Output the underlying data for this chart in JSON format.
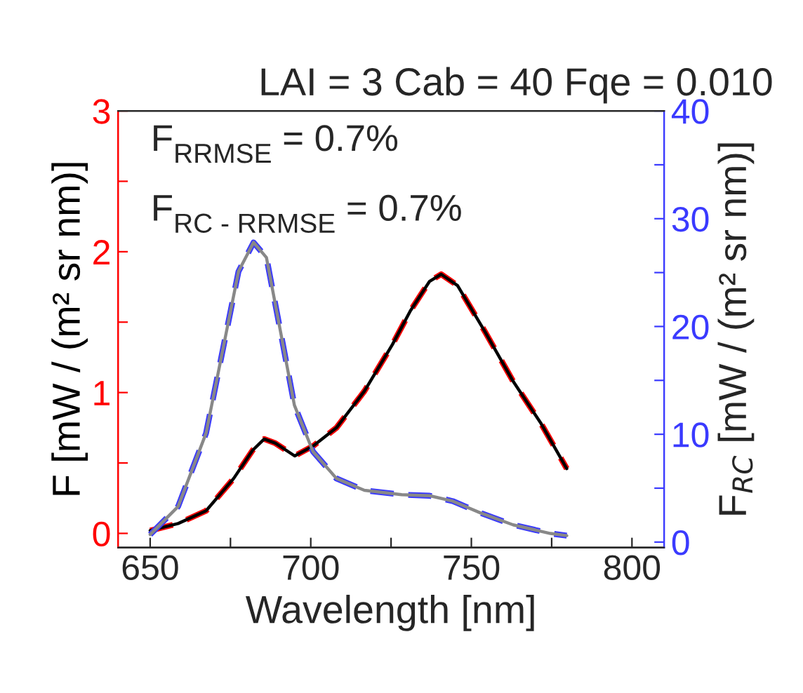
{
  "chart_data": {
    "type": "line",
    "title": "LAI = 3 Cab = 40 Fqe = 0.010",
    "xlabel": "Wavelength [nm]",
    "ylabel": "F [mW / (m² sr nm)]",
    "y2label": "F$_{RC}$ [mW / (m² sr nm)]",
    "annotations": [
      "F$_{RRMSE}$ = 0.7%",
      "F$_{RC - RRMSE}$ = 0.7%"
    ],
    "xlim": [
      640,
      810
    ],
    "xticks": [
      650,
      {
        "value": 675,
        "label": null
      },
      700,
      {
        "value": 725,
        "label": null
      },
      750,
      {
        "value": 775,
        "label": null
      },
      800
    ],
    "ylim": [
      -0.1,
      3
    ],
    "yticks": [
      0,
      {
        "value": 0.5,
        "label": null
      },
      1,
      {
        "value": 1.5,
        "label": null
      },
      2,
      {
        "value": 2.5,
        "label": null
      },
      3
    ],
    "y2lim": [
      -0.5,
      40
    ],
    "y2ticks": [
      0,
      {
        "value": 5,
        "label": null
      },
      10,
      {
        "value": 15,
        "label": null
      },
      20,
      {
        "value": 25,
        "label": null
      },
      30,
      {
        "value": 35,
        "label": null
      },
      40
    ],
    "grid": false,
    "legend": false,
    "series": [
      {
        "color": "#000000",
        "line_style": "solid",
        "x": [
          650,
          658.7,
          667.4,
          676,
          681.9,
          685.5,
          689,
          695,
          700.7,
          708,
          716.7,
          725.4,
          731,
          737,
          740.6,
          745.7,
          754.3,
          763,
          771.7,
          779.7
        ],
        "values": [
          0.02,
          0.07,
          0.16,
          0.39,
          0.59,
          0.67,
          0.64,
          0.55,
          0.62,
          0.75,
          1.01,
          1.34,
          1.58,
          1.79,
          1.84,
          1.76,
          1.43,
          1.08,
          0.78,
          0.46
        ]
      },
      {
        "color": "#ff0000",
        "line_style": "dashed",
        "x": [
          650,
          658.7,
          667.4,
          676,
          681.9,
          685.5,
          689,
          695,
          700.7,
          708,
          716.7,
          725.4,
          731,
          737,
          740.6,
          745.7,
          754.3,
          763,
          771.7,
          779.7
        ],
        "values": [
          0.02,
          0.07,
          0.16,
          0.39,
          0.59,
          0.67,
          0.64,
          0.55,
          0.62,
          0.75,
          1.01,
          1.34,
          1.58,
          1.79,
          1.84,
          1.76,
          1.43,
          1.08,
          0.78,
          0.46
        ]
      },
      {
        "color": "#888888",
        "line_style": "solid",
        "axis": "y2",
        "x": [
          650,
          658.7,
          667.4,
          673.2,
          677.5,
          682.2,
          686.2,
          690.6,
          694.9,
          700.7,
          708,
          716.7,
          728.3,
          737,
          744.2,
          752.9,
          763,
          774.6,
          779.7
        ],
        "values": [
          0.7,
          3.3,
          10.1,
          18.7,
          25.1,
          27.8,
          26.4,
          19.5,
          12.7,
          8.4,
          5.9,
          4.8,
          4.4,
          4.3,
          3.8,
          2.7,
          1.6,
          0.8,
          0.6
        ]
      },
      {
        "color": "#3a3aff",
        "line_style": "dashed",
        "axis": "y2",
        "x": [
          650,
          658.7,
          667.4,
          673.2,
          677.5,
          682.2,
          686.2,
          690.6,
          694.9,
          700.7,
          708,
          716.7,
          728.3,
          737,
          744.2,
          752.9,
          763,
          774.6,
          779.7
        ],
        "values": [
          0.7,
          3.3,
          10.1,
          18.7,
          25.1,
          27.8,
          26.4,
          19.5,
          12.7,
          8.4,
          5.9,
          4.8,
          4.4,
          4.3,
          3.8,
          2.7,
          1.6,
          0.8,
          0.6
        ]
      }
    ]
  }
}
